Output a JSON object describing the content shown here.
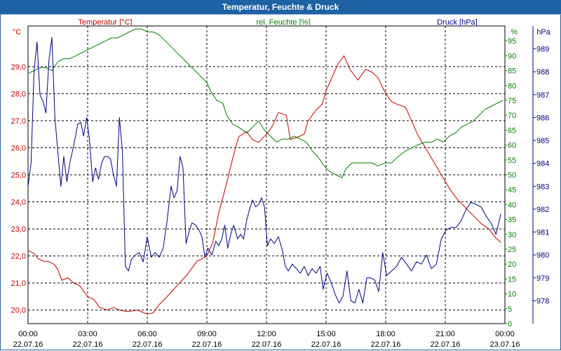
{
  "window": {
    "title": "Temperatur, Feuchte & Druck"
  },
  "chart_data": {
    "type": "line",
    "title": "Temperatur, Feuchte & Druck",
    "x_ticks": [
      {
        "h": 0,
        "time": "00:00",
        "date": "22.07.16"
      },
      {
        "h": 3,
        "time": "03:00",
        "date": "22.07.16"
      },
      {
        "h": 6,
        "time": "06:00",
        "date": "22.07.16"
      },
      {
        "h": 9,
        "time": "09:00",
        "date": "22.07.16"
      },
      {
        "h": 12,
        "time": "12:00",
        "date": "22.07.16"
      },
      {
        "h": 15,
        "time": "15:00",
        "date": "22.07.16"
      },
      {
        "h": 18,
        "time": "18:00",
        "date": "22.07.16"
      },
      {
        "h": 21,
        "time": "21:00",
        "date": "22.07.16"
      },
      {
        "h": 24,
        "time": "00:00",
        "date": "23.07.16"
      }
    ],
    "xlim": [
      0,
      24
    ],
    "axes": {
      "temperature": {
        "label": "Temperatur [°C]",
        "unit": "°C",
        "color": "#c00000",
        "ylim": [
          19.5,
          30.5
        ],
        "ticks": [
          "20,0",
          "21,0",
          "22,0",
          "23,0",
          "24,0",
          "25,0",
          "26,0",
          "27,0",
          "28,0",
          "29,0"
        ]
      },
      "humidity": {
        "label": "rel. Feuchte [%]",
        "unit": "%",
        "color": "#007f00",
        "ylim": [
          0,
          100
        ],
        "ticks": [
          "0",
          "5",
          "10",
          "15",
          "20",
          "25",
          "30",
          "35",
          "40",
          "45",
          "50",
          "55",
          "60",
          "65",
          "70",
          "75",
          "80",
          "85",
          "90",
          "95"
        ]
      },
      "pressure": {
        "label": "Druck [hPa]",
        "unit": "hPa",
        "color": "#000080",
        "ylim": [
          977,
          990
        ],
        "ticks": [
          "978",
          "979",
          "980",
          "981",
          "982",
          "983",
          "984",
          "985",
          "986",
          "987",
          "988",
          "989"
        ]
      }
    },
    "series": [
      {
        "name": "Temperatur",
        "axis": "temperature",
        "color": "#c00000",
        "points": [
          [
            0,
            22.2
          ],
          [
            0.3,
            22.1
          ],
          [
            0.5,
            21.9
          ],
          [
            0.8,
            21.8
          ],
          [
            1,
            21.8
          ],
          [
            1.3,
            21.7
          ],
          [
            1.5,
            21.5
          ],
          [
            1.7,
            21.1
          ],
          [
            2,
            21.2
          ],
          [
            2.3,
            21.0
          ],
          [
            2.6,
            20.9
          ],
          [
            2.8,
            20.7
          ],
          [
            3,
            20.5
          ],
          [
            3.3,
            20.4
          ],
          [
            3.6,
            20.1
          ],
          [
            4,
            20.0
          ],
          [
            4.3,
            20.1
          ],
          [
            4.6,
            20.0
          ],
          [
            5,
            19.95
          ],
          [
            5.5,
            20.0
          ],
          [
            6,
            19.85
          ],
          [
            6.3,
            19.9
          ],
          [
            6.6,
            20.2
          ],
          [
            7,
            20.5
          ],
          [
            7.5,
            20.9
          ],
          [
            8,
            21.3
          ],
          [
            8.5,
            21.8
          ],
          [
            9,
            22.0
          ],
          [
            9.3,
            22.5
          ],
          [
            9.6,
            23.6
          ],
          [
            10,
            24.7
          ],
          [
            10.3,
            25.6
          ],
          [
            10.6,
            26.4
          ],
          [
            11,
            26.6
          ],
          [
            11.3,
            26.3
          ],
          [
            11.6,
            26.2
          ],
          [
            12,
            26.5
          ],
          [
            12.3,
            26.8
          ],
          [
            12.6,
            27.3
          ],
          [
            13,
            27.2
          ],
          [
            13.2,
            26.3
          ],
          [
            13.6,
            26.4
          ],
          [
            13.9,
            26.5
          ],
          [
            14.1,
            27.0
          ],
          [
            14.5,
            27.4
          ],
          [
            14.8,
            27.6
          ],
          [
            15,
            28.1
          ],
          [
            15.3,
            28.6
          ],
          [
            15.6,
            29.1
          ],
          [
            15.9,
            29.4
          ],
          [
            16.2,
            28.9
          ],
          [
            16.6,
            28.5
          ],
          [
            17,
            28.9
          ],
          [
            17.3,
            28.8
          ],
          [
            17.6,
            28.6
          ],
          [
            18,
            28.0
          ],
          [
            18.3,
            27.7
          ],
          [
            18.6,
            27.6
          ],
          [
            19,
            27.5
          ],
          [
            19.3,
            27.0
          ],
          [
            19.6,
            26.5
          ],
          [
            20,
            26.0
          ],
          [
            20.4,
            25.5
          ],
          [
            20.8,
            25.0
          ],
          [
            21.2,
            24.5
          ],
          [
            21.6,
            24.1
          ],
          [
            22,
            23.8
          ],
          [
            22.4,
            23.5
          ],
          [
            22.8,
            23.2
          ],
          [
            23.2,
            23.0
          ],
          [
            23.5,
            22.7
          ],
          [
            23.8,
            22.5
          ]
        ]
      },
      {
        "name": "rel. Feuchte",
        "axis": "humidity",
        "color": "#007f00",
        "points": [
          [
            0,
            84
          ],
          [
            0.3,
            85
          ],
          [
            0.6,
            86
          ],
          [
            0.9,
            86
          ],
          [
            1.2,
            85
          ],
          [
            1.5,
            88
          ],
          [
            1.8,
            89
          ],
          [
            2.1,
            89
          ],
          [
            2.4,
            90
          ],
          [
            2.7,
            91
          ],
          [
            3,
            92
          ],
          [
            3.3,
            93
          ],
          [
            3.6,
            94
          ],
          [
            3.9,
            95
          ],
          [
            4.2,
            96
          ],
          [
            4.5,
            96
          ],
          [
            4.8,
            97
          ],
          [
            5.1,
            98
          ],
          [
            5.4,
            99
          ],
          [
            5.7,
            99
          ],
          [
            6,
            98
          ],
          [
            6.3,
            98
          ],
          [
            6.6,
            97
          ],
          [
            6.9,
            95
          ],
          [
            7.2,
            93
          ],
          [
            7.5,
            91
          ],
          [
            7.8,
            89
          ],
          [
            8.1,
            87
          ],
          [
            8.4,
            85
          ],
          [
            8.7,
            83
          ],
          [
            9,
            81
          ],
          [
            9.2,
            78
          ],
          [
            9.5,
            75
          ],
          [
            9.8,
            74
          ],
          [
            10,
            70
          ],
          [
            10.3,
            67
          ],
          [
            10.6,
            66
          ],
          [
            11,
            64
          ],
          [
            11.3,
            66
          ],
          [
            11.6,
            68
          ],
          [
            11.9,
            65
          ],
          [
            12.2,
            63
          ],
          [
            12.5,
            61
          ],
          [
            12.8,
            62
          ],
          [
            13.1,
            62
          ],
          [
            13.4,
            63
          ],
          [
            13.7,
            62
          ],
          [
            14,
            61
          ],
          [
            14.3,
            58
          ],
          [
            14.6,
            56
          ],
          [
            14.9,
            53
          ],
          [
            15.2,
            51
          ],
          [
            15.5,
            50
          ],
          [
            15.8,
            49
          ],
          [
            16,
            52
          ],
          [
            16.3,
            54
          ],
          [
            16.6,
            54
          ],
          [
            17,
            54
          ],
          [
            17.3,
            54
          ],
          [
            17.6,
            53
          ],
          [
            18,
            54
          ],
          [
            18.3,
            54
          ],
          [
            18.6,
            56
          ],
          [
            19,
            58
          ],
          [
            19.3,
            59
          ],
          [
            19.6,
            60
          ],
          [
            20,
            61
          ],
          [
            20.3,
            61
          ],
          [
            20.6,
            62
          ],
          [
            20.9,
            61
          ],
          [
            21.2,
            63
          ],
          [
            21.5,
            64
          ],
          [
            21.8,
            66
          ],
          [
            22.1,
            67
          ],
          [
            22.4,
            68
          ],
          [
            22.7,
            70
          ],
          [
            23,
            72
          ],
          [
            23.3,
            73
          ],
          [
            23.6,
            74
          ],
          [
            23.9,
            75
          ]
        ]
      },
      {
        "name": "Druck",
        "axis": "pressure",
        "color": "#000080",
        "points": [
          [
            0,
            983
          ],
          [
            0.15,
            984
          ],
          [
            0.3,
            988
          ],
          [
            0.45,
            989.3
          ],
          [
            0.6,
            987
          ],
          [
            0.75,
            986.7
          ],
          [
            0.9,
            986.2
          ],
          [
            1.05,
            988.5
          ],
          [
            1.2,
            989.5
          ],
          [
            1.35,
            986
          ],
          [
            1.5,
            984.5
          ],
          [
            1.65,
            983
          ],
          [
            1.8,
            984.3
          ],
          [
            1.95,
            983.2
          ],
          [
            2.1,
            984
          ],
          [
            2.3,
            984.8
          ],
          [
            2.5,
            985.7
          ],
          [
            2.65,
            985.8
          ],
          [
            2.8,
            985.2
          ],
          [
            2.95,
            986
          ],
          [
            3.1,
            985
          ],
          [
            3.25,
            983.2
          ],
          [
            3.4,
            983.8
          ],
          [
            3.55,
            983.3
          ],
          [
            3.7,
            984
          ],
          [
            3.85,
            984.3
          ],
          [
            4.0,
            984.3
          ],
          [
            4.15,
            984.2
          ],
          [
            4.3,
            983.5
          ],
          [
            4.45,
            983
          ],
          [
            4.6,
            986
          ],
          [
            4.75,
            984.5
          ],
          [
            4.9,
            979.5
          ],
          [
            5.05,
            979.3
          ],
          [
            5.2,
            979.8
          ],
          [
            5.4,
            980
          ],
          [
            5.6,
            980.1
          ],
          [
            5.8,
            979.7
          ],
          [
            6,
            980.8
          ],
          [
            6.2,
            979.9
          ],
          [
            6.4,
            980.1
          ],
          [
            6.6,
            979.9
          ],
          [
            6.8,
            980.3
          ],
          [
            7,
            981.5
          ],
          [
            7.2,
            983
          ],
          [
            7.35,
            982.5
          ],
          [
            7.5,
            982.8
          ],
          [
            7.65,
            984.3
          ],
          [
            7.8,
            983.8
          ],
          [
            7.95,
            980.5
          ],
          [
            8.1,
            981
          ],
          [
            8.25,
            981.4
          ],
          [
            8.45,
            981.3
          ],
          [
            8.6,
            981.1
          ],
          [
            8.75,
            980.8
          ],
          [
            8.9,
            979.9
          ],
          [
            9.05,
            980.3
          ],
          [
            9.25,
            980
          ],
          [
            9.45,
            980.6
          ],
          [
            9.6,
            980.4
          ],
          [
            9.75,
            980.7
          ],
          [
            9.9,
            981.3
          ],
          [
            10.05,
            980.3
          ],
          [
            10.2,
            980.9
          ],
          [
            10.35,
            981.3
          ],
          [
            10.55,
            980.7
          ],
          [
            10.7,
            980.9
          ],
          [
            10.85,
            980.7
          ],
          [
            11,
            981.5
          ],
          [
            11.15,
            982
          ],
          [
            11.3,
            982.4
          ],
          [
            11.45,
            982.1
          ],
          [
            11.6,
            982.2
          ],
          [
            11.75,
            982.5
          ],
          [
            11.9,
            982.1
          ],
          [
            12.05,
            980.4
          ],
          [
            12.2,
            980.7
          ],
          [
            12.4,
            980.5
          ],
          [
            12.6,
            980.8
          ],
          [
            12.8,
            980.2
          ],
          [
            12.95,
            979.5
          ],
          [
            13.1,
            979.3
          ],
          [
            13.3,
            979.6
          ],
          [
            13.5,
            979.4
          ],
          [
            13.7,
            979.2
          ],
          [
            13.9,
            979.5
          ],
          [
            14.1,
            979.1
          ],
          [
            14.3,
            979.4
          ],
          [
            14.5,
            979.2
          ],
          [
            14.7,
            979.5
          ],
          [
            14.85,
            978.5
          ],
          [
            15.05,
            979.2
          ],
          [
            15.25,
            978.8
          ],
          [
            15.45,
            978.3
          ],
          [
            15.65,
            977.9
          ],
          [
            15.85,
            978.2
          ],
          [
            16.05,
            979.3
          ],
          [
            16.25,
            978
          ],
          [
            16.45,
            977.9
          ],
          [
            16.65,
            978.5
          ],
          [
            16.85,
            977.9
          ],
          [
            17.05,
            979
          ],
          [
            17.25,
            979
          ],
          [
            17.45,
            978.9
          ],
          [
            17.65,
            978.4
          ],
          [
            17.85,
            980.1
          ],
          [
            18.05,
            979.1
          ],
          [
            18.3,
            979.3
          ],
          [
            18.55,
            979.5
          ],
          [
            18.8,
            979.9
          ],
          [
            19.05,
            979.6
          ],
          [
            19.3,
            979.3
          ],
          [
            19.55,
            979.7
          ],
          [
            19.8,
            979.6
          ],
          [
            20.05,
            980
          ],
          [
            20.3,
            979.4
          ],
          [
            20.55,
            979.6
          ],
          [
            20.8,
            980.7
          ],
          [
            21.05,
            981.1
          ],
          [
            21.3,
            981.2
          ],
          [
            21.55,
            981.2
          ],
          [
            21.8,
            981.5
          ],
          [
            22.05,
            982
          ],
          [
            22.3,
            982.3
          ],
          [
            22.55,
            982.2
          ],
          [
            22.8,
            982.1
          ],
          [
            23.05,
            981.7
          ],
          [
            23.3,
            981.4
          ],
          [
            23.55,
            980.9
          ],
          [
            23.8,
            981.8
          ]
        ]
      }
    ]
  }
}
